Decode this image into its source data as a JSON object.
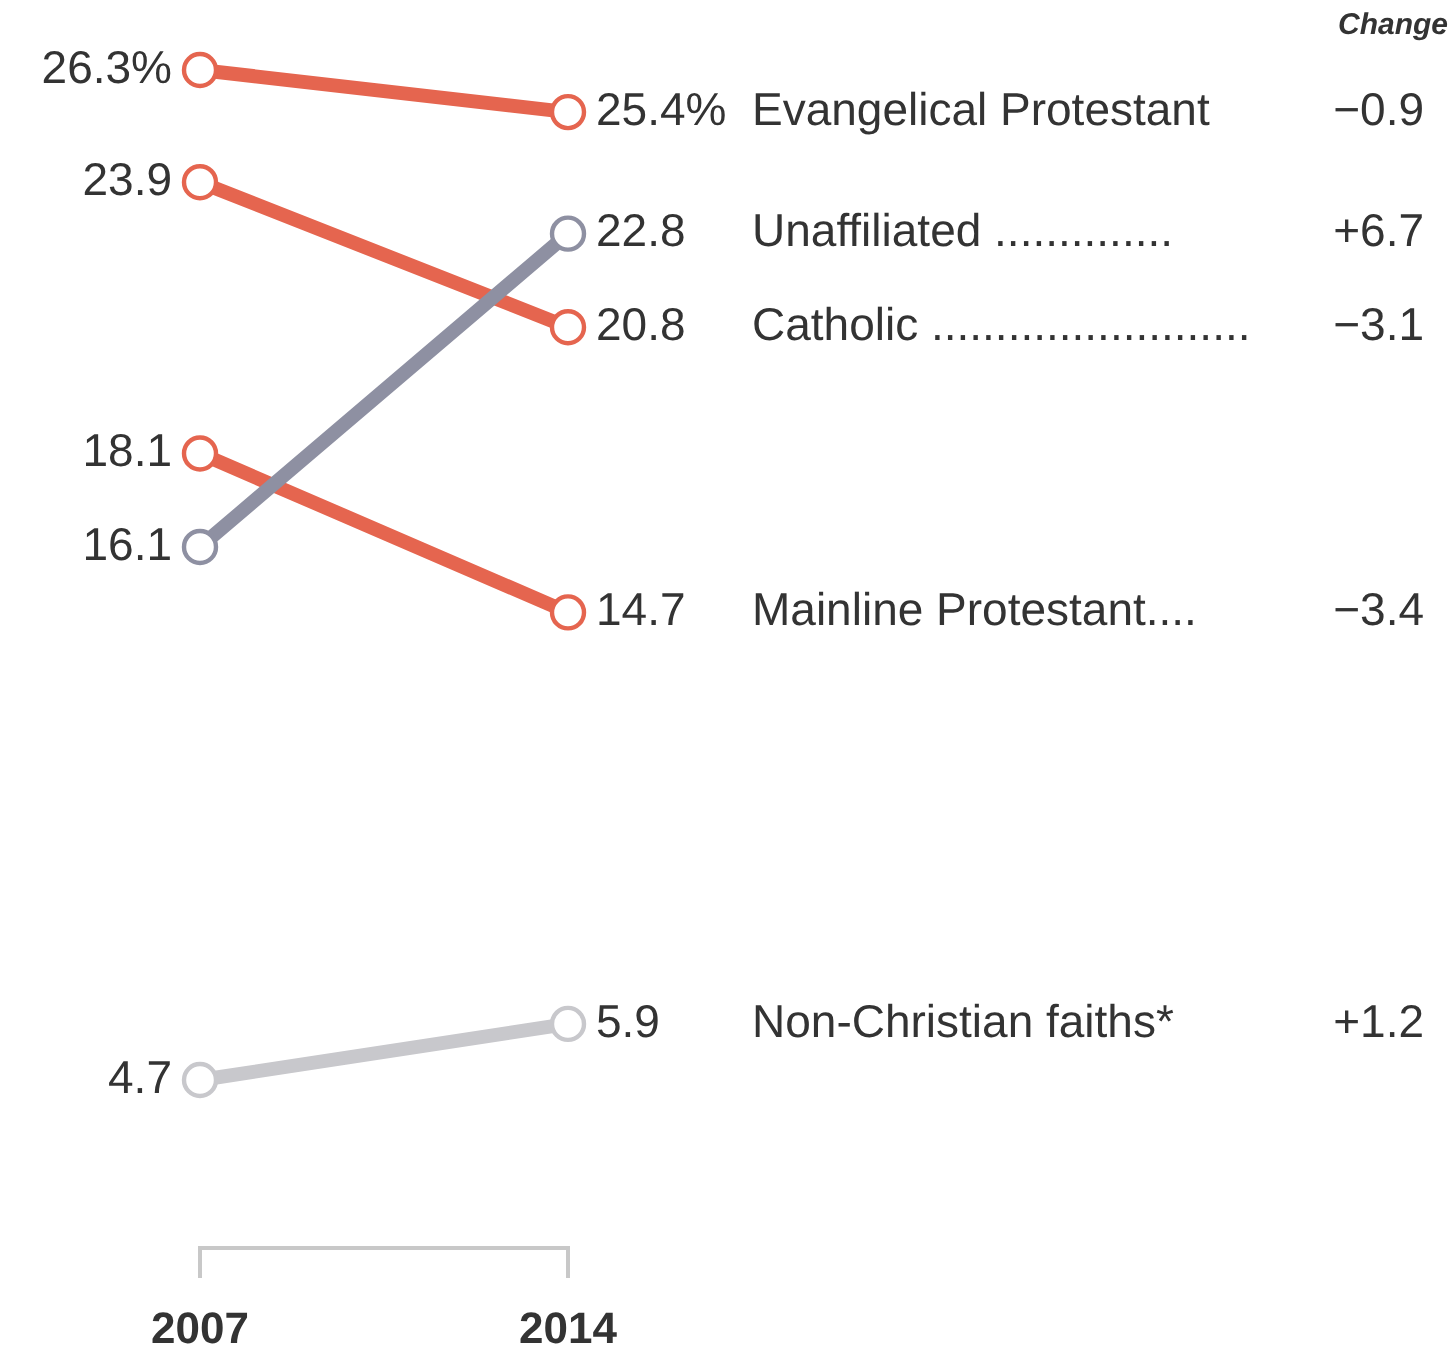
{
  "chart_data": {
    "type": "line",
    "categories": [
      "2007",
      "2014"
    ],
    "series": [
      {
        "name": "Evangelical Protestant",
        "color": "#e5654f",
        "values": [
          26.3,
          25.4
        ],
        "value_labels": [
          "26.3%",
          "25.4%"
        ]
      },
      {
        "name": "Unaffiliated ..............",
        "color": "#8e90a2",
        "values": [
          16.1,
          22.8
        ],
        "value_labels": [
          "16.1",
          "22.8"
        ]
      },
      {
        "name": "Catholic .........................",
        "color": "#e5654f",
        "values": [
          23.9,
          20.8
        ],
        "value_labels": [
          "23.9",
          "20.8"
        ]
      },
      {
        "name": "Mainline Protestant....",
        "color": "#e5654f",
        "values": [
          18.1,
          14.7
        ],
        "value_labels": [
          "18.1",
          "14.7"
        ]
      },
      {
        "name": "Non-Christian faiths*",
        "color": "#c8c8cc",
        "values": [
          4.7,
          5.9
        ],
        "value_labels": [
          "4.7",
          "5.9"
        ]
      }
    ],
    "tick_labels": "x",
    "marker": "circle",
    "line_style": "solid",
    "annotations": [
      "Change",
      "−0.9",
      "+6.7",
      "−3.1",
      "−3.4",
      "+1.2"
    ]
  }
}
